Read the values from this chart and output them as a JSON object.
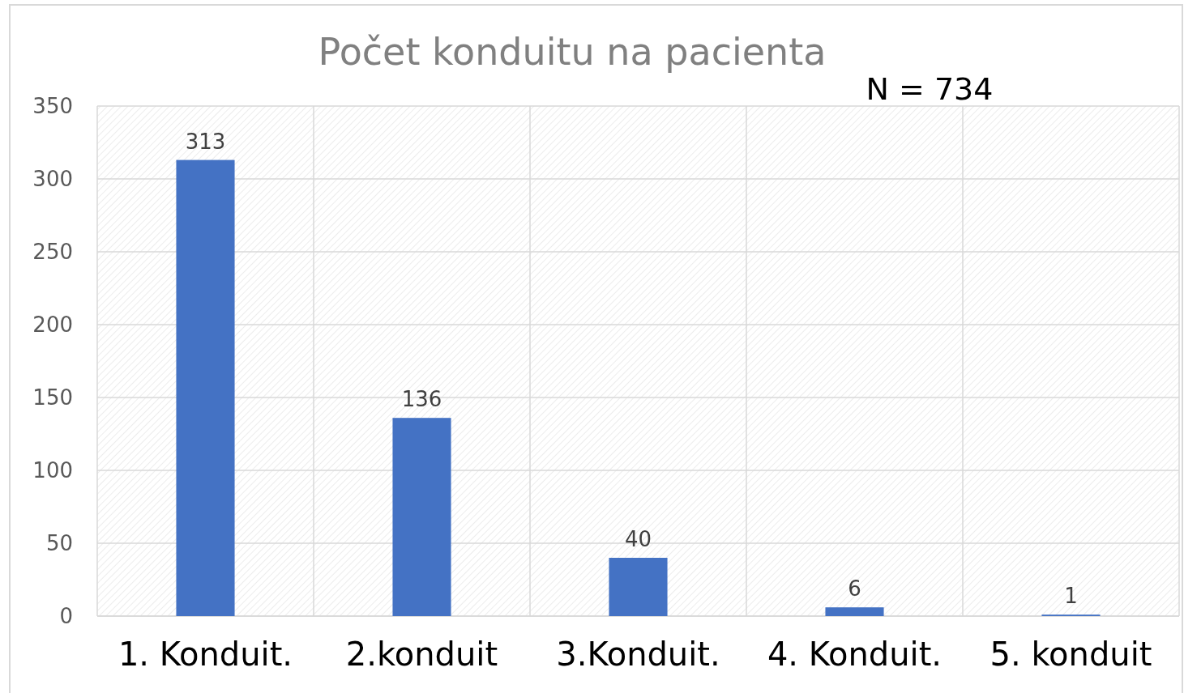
{
  "chart_data": {
    "type": "bar",
    "title": "Počet konduitu na pacienta",
    "annotations": [
      "N = 734"
    ],
    "categories": [
      "1. Konduit.",
      "2.konduit",
      "3.Konduit.",
      "4. Konduit.",
      "5. konduit"
    ],
    "values": [
      313,
      136,
      40,
      6,
      1
    ],
    "color": "#4472c4",
    "data_labels": true,
    "ylim": [
      0,
      350
    ],
    "yticks": [
      0,
      50,
      100,
      150,
      200,
      250,
      300,
      350
    ],
    "grid": true
  }
}
